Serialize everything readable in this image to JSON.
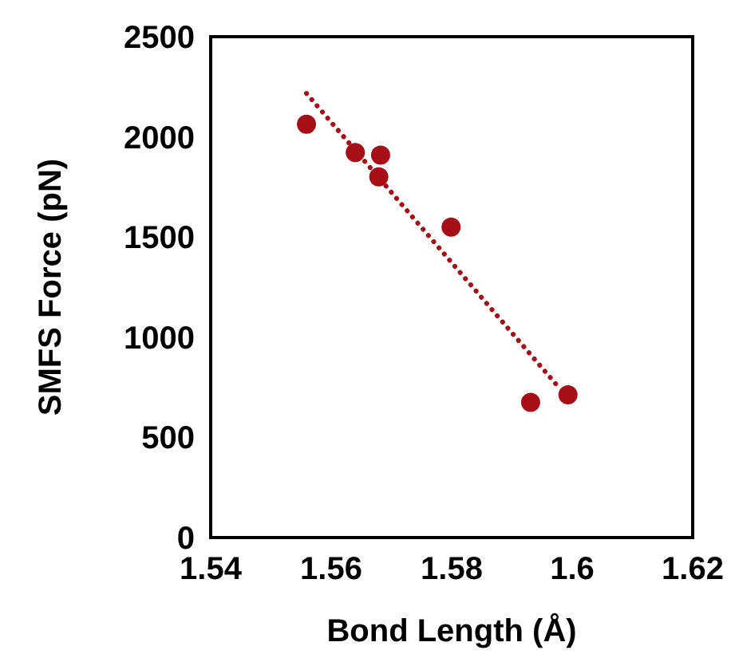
{
  "chart_data": {
    "type": "scatter",
    "xlabel": "Bond Length (Å)",
    "ylabel": "SMFS Force (pN)",
    "xlim": [
      1.54,
      1.62
    ],
    "xticks": [
      1.54,
      1.56,
      1.58,
      {
        "value": 1.6,
        "label": "1.6"
      },
      1.62
    ],
    "ylim": [
      0,
      2500
    ],
    "yticks": [
      0,
      500,
      1000,
      1500,
      2000,
      2500
    ],
    "grid": false,
    "marker": "circle",
    "series": [
      {
        "color": "#a50f15",
        "x": [
          1.5559,
          1.564,
          1.5682,
          1.5679,
          1.5799,
          1.5931,
          1.5993
        ],
        "values": [
          2063,
          1922,
          1909,
          1800,
          1550,
          675,
          713
        ]
      },
      {
        "type": "line",
        "color": "#a50f15",
        "line_style": "dotted",
        "marker": "none",
        "x": [
          1.5559,
          1.5979
        ],
        "values": [
          2217,
          745
        ]
      }
    ]
  }
}
